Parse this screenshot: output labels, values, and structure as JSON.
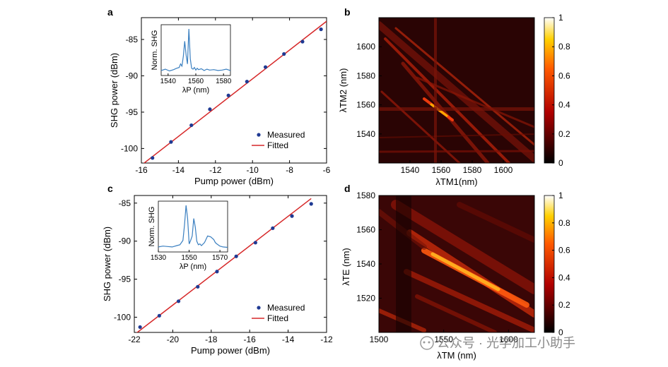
{
  "chart_data": [
    {
      "panel": "a",
      "type": "scatter",
      "xlabel": "Pump power (dBm)",
      "ylabel": "SHG power (dBm)",
      "xlim": [
        -16,
        -6
      ],
      "ylim": [
        -102,
        -82
      ],
      "xticks": [
        -16,
        -14,
        -12,
        -10,
        -8,
        -6
      ],
      "yticks": [
        -100,
        -95,
        -90,
        -85
      ],
      "series": [
        {
          "name": "Measured",
          "type": "scatter",
          "color": "#1f3a93",
          "x": [
            -15.4,
            -14.4,
            -13.3,
            -12.3,
            -11.3,
            -10.3,
            -9.3,
            -8.3,
            -7.3,
            -6.3
          ],
          "y": [
            -101.3,
            -99.1,
            -96.8,
            -94.6,
            -92.7,
            -90.8,
            -88.8,
            -87.0,
            -85.3,
            -83.6
          ]
        },
        {
          "name": "Fitted",
          "type": "line",
          "color": "#d62728",
          "x": [
            -16.0,
            -6.0
          ],
          "y": [
            -102.3,
            -82.5
          ]
        }
      ],
      "legend": "bottom-right",
      "inset": {
        "xlabel": "λP (nm)",
        "ylabel": "Norm. SHG",
        "xlim": [
          1535,
          1585
        ],
        "xticks": [
          1540,
          1560,
          1580
        ],
        "color": "#3a7fc0",
        "x": [
          1535,
          1538,
          1541,
          1544,
          1546,
          1548,
          1549,
          1550,
          1551,
          1552,
          1553,
          1554,
          1555,
          1556,
          1557,
          1558,
          1559,
          1560,
          1561,
          1562,
          1564,
          1566,
          1568,
          1570,
          1573,
          1576,
          1579,
          1582,
          1585
        ],
        "y": [
          0.05,
          0.08,
          0.04,
          0.07,
          0.1,
          0.12,
          0.2,
          0.15,
          0.38,
          0.72,
          0.4,
          0.2,
          1.0,
          0.32,
          0.1,
          0.08,
          0.12,
          0.06,
          0.1,
          0.07,
          0.09,
          0.05,
          0.08,
          0.06,
          0.07,
          0.05,
          0.06,
          0.08,
          0.05
        ]
      }
    },
    {
      "panel": "b",
      "type": "heatmap",
      "xlabel": "λTM1(nm)",
      "ylabel": "λTM2 (nm)",
      "xlim": [
        1520,
        1620
      ],
      "ylim": [
        1520,
        1620
      ],
      "xticks": [
        1540,
        1560,
        1580,
        1600
      ],
      "yticks": [
        1540,
        1560,
        1580,
        1600
      ],
      "colorbar": {
        "min": 0,
        "max": 1,
        "ticks": [
          0,
          0.2,
          0.4,
          0.6,
          0.8,
          1
        ],
        "colormap": "hot"
      }
    },
    {
      "panel": "c",
      "type": "scatter",
      "xlabel": "Pump power (dBm)",
      "ylabel": "SHG power (dBm)",
      "xlim": [
        -22,
        -12
      ],
      "ylim": [
        -102,
        -84
      ],
      "xticks": [
        -22,
        -20,
        -18,
        -16,
        -14,
        -12
      ],
      "yticks": [
        -100,
        -95,
        -90,
        -85
      ],
      "series": [
        {
          "name": "Measured",
          "type": "scatter",
          "color": "#1f3a93",
          "x": [
            -21.7,
            -20.7,
            -19.7,
            -18.7,
            -17.7,
            -16.7,
            -15.7,
            -14.8,
            -13.8,
            -12.8
          ],
          "y": [
            -101.3,
            -99.8,
            -97.9,
            -96.0,
            -94.0,
            -92.0,
            -90.2,
            -88.3,
            -86.7,
            -85.1
          ]
        },
        {
          "name": "Fitted",
          "type": "line",
          "color": "#d62728",
          "x": [
            -22.0,
            -12.8
          ],
          "y": [
            -102.3,
            -84.4
          ]
        }
      ],
      "legend": "bottom-right",
      "inset": {
        "xlabel": "λP (nm)",
        "ylabel": "Norm. SHG",
        "xlim": [
          1530,
          1575
        ],
        "xticks": [
          1530,
          1550,
          1570
        ],
        "color": "#3a7fc0",
        "x": [
          1530,
          1533,
          1536,
          1539,
          1542,
          1544,
          1546,
          1547,
          1548,
          1549,
          1550,
          1551,
          1552,
          1553,
          1554,
          1555,
          1556,
          1557,
          1558,
          1560,
          1562,
          1564,
          1566,
          1567,
          1568,
          1570,
          1572,
          1575
        ],
        "y": [
          0.05,
          0.07,
          0.06,
          0.05,
          0.08,
          0.1,
          0.2,
          0.55,
          1.0,
          0.7,
          0.12,
          0.2,
          0.3,
          0.7,
          0.5,
          0.18,
          0.1,
          0.12,
          0.08,
          0.15,
          0.3,
          0.28,
          0.22,
          0.15,
          0.12,
          0.07,
          0.05,
          0.04
        ]
      }
    },
    {
      "panel": "d",
      "type": "heatmap",
      "xlabel": "λTM (nm)",
      "ylabel": "λTE (nm)",
      "xlim": [
        1500,
        1620
      ],
      "ylim": [
        1500,
        1580
      ],
      "xticks": [
        1500,
        1550,
        1600
      ],
      "yticks": [
        1520,
        1540,
        1560,
        1580
      ],
      "colorbar": {
        "min": 0,
        "max": 1,
        "ticks": [
          0,
          0.2,
          0.4,
          0.6,
          0.8,
          1
        ],
        "colormap": "hot"
      }
    }
  ],
  "labels": {
    "panel_a": "a",
    "panel_b": "b",
    "panel_c": "c",
    "panel_d": "d",
    "measured": "Measured",
    "fitted": "Fitted",
    "pump_power": "Pump power (dBm)",
    "shg_power": "SHG power (dBm)",
    "norm_shg": "Norm. SHG",
    "lambda_p": "λP (nm)",
    "lambda_tm1": "λTM1(nm)",
    "lambda_tm2": "λTM2 (nm)",
    "lambda_tm": "λTM (nm)",
    "lambda_te": "λTE (nm)"
  },
  "watermark": "公众号 · 光学加工小助手"
}
